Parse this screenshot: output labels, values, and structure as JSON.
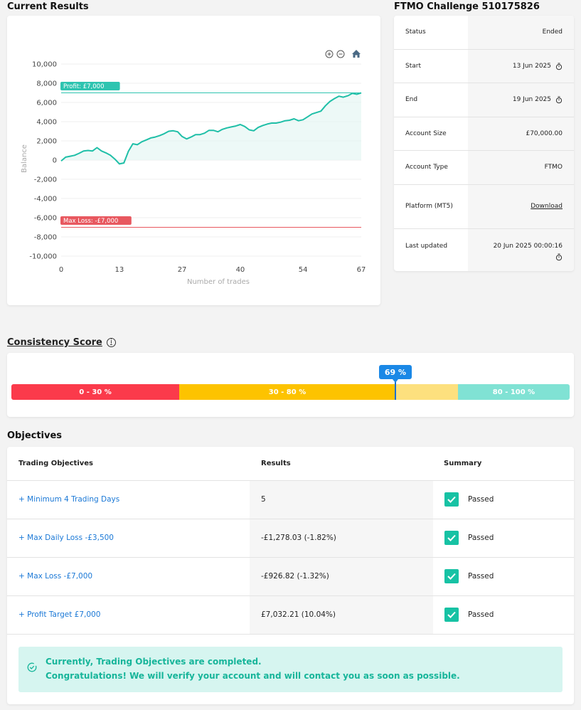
{
  "current_results": {
    "title": "Current Results"
  },
  "chart_data": {
    "type": "line",
    "xlabel": "Number of trades",
    "ylabel": "Balance",
    "xlim": [
      0,
      67
    ],
    "ylim": [
      -10000,
      10000
    ],
    "x_ticks": [
      "0",
      "13",
      "27",
      "40",
      "54",
      "67"
    ],
    "y_ticks": [
      "10,000",
      "8,000",
      "6,000",
      "4,000",
      "2,000",
      "0",
      "-2,000",
      "-4,000",
      "-6,000",
      "-8,000",
      "-10,000"
    ],
    "profit_line": {
      "label": "Profit: £7,000",
      "value": 7000,
      "color": "#2ec4b0"
    },
    "max_loss_line": {
      "label": "Max Loss: -£7,000",
      "value": -7000,
      "color": "#e8585f"
    },
    "series": [
      {
        "color": "#1fbfa7",
        "x": [
          0,
          1,
          2,
          3,
          4,
          5,
          6,
          7,
          8,
          9,
          10,
          11,
          12,
          13,
          14,
          15,
          16,
          17,
          18,
          19,
          20,
          21,
          22,
          23,
          24,
          25,
          26,
          27,
          28,
          29,
          30,
          31,
          32,
          33,
          34,
          35,
          36,
          37,
          38,
          39,
          40,
          41,
          42,
          43,
          44,
          45,
          46,
          47,
          48,
          49,
          50,
          51,
          52,
          53,
          54,
          55,
          56,
          57,
          58,
          59,
          60,
          61,
          62,
          63,
          64,
          65,
          66,
          67
        ],
        "y": [
          -100,
          300,
          400,
          500,
          700,
          950,
          1000,
          950,
          1300,
          950,
          750,
          500,
          100,
          -400,
          -300,
          900,
          1700,
          1600,
          1900,
          2100,
          2300,
          2400,
          2550,
          2750,
          3000,
          3050,
          2950,
          2450,
          2200,
          2400,
          2650,
          2650,
          2800,
          3100,
          3100,
          2950,
          3200,
          3350,
          3450,
          3550,
          3700,
          3500,
          3150,
          3050,
          3400,
          3600,
          3750,
          3850,
          3850,
          3950,
          4100,
          4150,
          4300,
          4100,
          4200,
          4500,
          4800,
          4950,
          5100,
          5650,
          6100,
          6400,
          6650,
          6550,
          6700,
          6950,
          6850,
          7000
        ]
      }
    ],
    "grid": true
  },
  "account": {
    "title": "FTMO Challenge 510175826",
    "rows": [
      {
        "label": "Status",
        "value": "Ended"
      },
      {
        "label": "Start",
        "value": "13 Jun 2025"
      },
      {
        "label": "End",
        "value": "19 Jun 2025"
      },
      {
        "label": "Account Size",
        "value": "£70,000.00"
      },
      {
        "label": "Account Type",
        "value": "FTMO"
      },
      {
        "label": "Platform (MT5)",
        "value": "Download"
      },
      {
        "label": "Last updated",
        "value": "20 Jun 2025 00:00:16"
      }
    ]
  },
  "consistency": {
    "title": "Consistency Score",
    "info_icon": "i",
    "score": 69,
    "score_label": "69 %",
    "segments": [
      {
        "label": "0 - 30 %",
        "color": "#fb3a4b"
      },
      {
        "label": "30 - 80 %",
        "color": "#fdc300"
      },
      {
        "label": "80 - 100 %",
        "color": "#80e2d4"
      }
    ],
    "faded_color": "#fde07e"
  },
  "objectives": {
    "title": "Objectives",
    "headers": {
      "objective": "Trading Objectives",
      "result": "Results",
      "summary": "Summary"
    },
    "rows": [
      {
        "name": "+ Minimum 4 Trading Days",
        "result": "5",
        "status": "Passed"
      },
      {
        "name": "+ Max Daily Loss -£3,500",
        "result": "-£1,278.03 (-1.82%)",
        "status": "Passed"
      },
      {
        "name": "+ Max Loss -£7,000",
        "result": "-£926.82 (-1.32%)",
        "status": "Passed"
      },
      {
        "name": "+ Profit Target £7,000",
        "result": "£7,032.21 (10.04%)",
        "status": "Passed"
      }
    ],
    "success_line1": "Currently, Trading Objectives are completed.",
    "success_line2": "Congratulations! We will verify your account and will contact you as soon as possible."
  }
}
